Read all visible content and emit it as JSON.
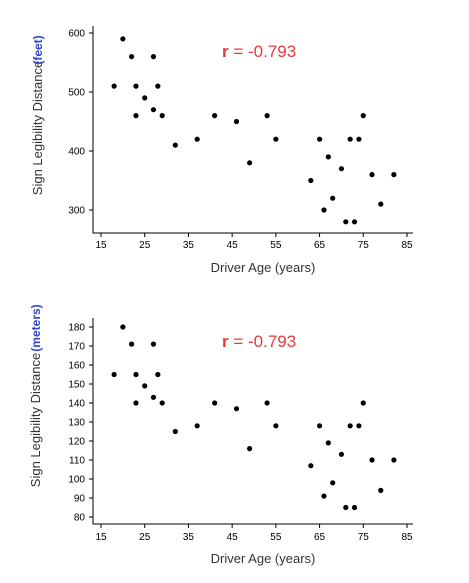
{
  "chart_data": [
    {
      "type": "scatter",
      "title": "",
      "annotation": {
        "prefix": "r",
        "value": " = -0.793"
      },
      "xlabel": "Driver Age (years)",
      "ylabel": "Sign Legibility Distance",
      "yunit": "(feet)",
      "xlim": [
        15,
        85
      ],
      "ylim": [
        260,
        600
      ],
      "xticks": [
        15,
        25,
        35,
        45,
        55,
        65,
        75,
        85
      ],
      "yticks": [
        300,
        400,
        500,
        600
      ],
      "grid": false,
      "points": {
        "x": [
          18,
          20,
          22,
          23,
          23,
          25,
          27,
          27,
          28,
          29,
          32,
          37,
          41,
          46,
          49,
          53,
          55,
          63,
          65,
          66,
          67,
          68,
          70,
          71,
          72,
          73,
          74,
          75,
          77,
          79,
          82
        ],
        "y": [
          510,
          590,
          560,
          460,
          510,
          490,
          560,
          470,
          510,
          460,
          410,
          420,
          460,
          450,
          380,
          460,
          420,
          350,
          420,
          300,
          390,
          320,
          370,
          280,
          420,
          280,
          420,
          460,
          360,
          310,
          360
        ]
      }
    },
    {
      "type": "scatter",
      "title": "",
      "annotation": {
        "prefix": "r",
        "value": " = -0.793"
      },
      "xlabel": "Driver Age (years)",
      "ylabel": "Sign Legibility Distance",
      "yunit": "(meters)",
      "xlim": [
        15,
        85
      ],
      "ylim": [
        80,
        183
      ],
      "xticks": [
        15,
        25,
        35,
        45,
        55,
        65,
        75,
        85
      ],
      "yticks": [
        80,
        90,
        100,
        110,
        120,
        130,
        140,
        150,
        160,
        170,
        180
      ],
      "grid": false,
      "points": {
        "x": [
          18,
          20,
          22,
          23,
          23,
          25,
          27,
          27,
          28,
          29,
          32,
          37,
          41,
          46,
          49,
          53,
          55,
          63,
          65,
          66,
          67,
          68,
          70,
          71,
          72,
          73,
          74,
          75,
          77,
          79,
          82
        ],
        "y": [
          155,
          180,
          171,
          140,
          155,
          149,
          171,
          143,
          155,
          140,
          125,
          128,
          140,
          137,
          116,
          140,
          128,
          107,
          128,
          91,
          119,
          98,
          113,
          85,
          128,
          85,
          128,
          140,
          110,
          94,
          110
        ]
      }
    }
  ]
}
